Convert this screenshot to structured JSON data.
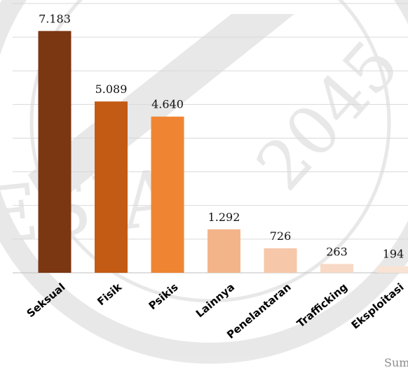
{
  "chart_data": {
    "type": "bar",
    "title": "",
    "xlabel": "",
    "ylabel": "",
    "categories": [
      "Seksual",
      "Fisik",
      "Psikis",
      "Lainnya",
      "Penelantaran",
      "Trafficking",
      "Eksploitasi"
    ],
    "values": [
      7183,
      5089,
      4640,
      1292,
      726,
      263,
      194
    ],
    "value_labels": [
      "7.183",
      "5.089",
      "4.640",
      "1.292",
      "726",
      "263",
      "194"
    ],
    "colors": [
      "#7b3612",
      "#c45b14",
      "#ef8532",
      "#f3b48a",
      "#f6c7a8",
      "#f8d9c5",
      "#f9e3d4"
    ],
    "ylim": [
      0,
      8000
    ],
    "grid": true,
    "gridline_color": "#d9d9d9"
  },
  "watermark": {
    "text_left": "ESIA",
    "text_right": "2045"
  },
  "source_text": "Sum"
}
